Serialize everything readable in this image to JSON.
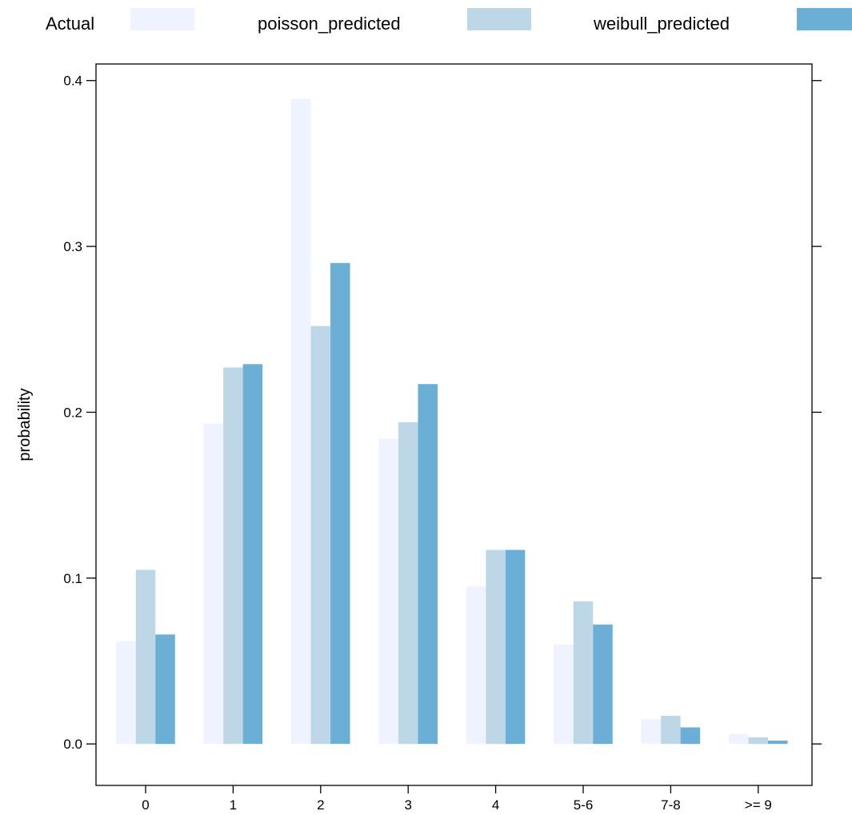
{
  "chart_data": {
    "type": "bar",
    "categories": [
      "0",
      "1",
      "2",
      "3",
      "4",
      "5-6",
      "7-8",
      ">= 9"
    ],
    "series": [
      {
        "name": "Actual",
        "color": "#EEF3FF",
        "values": [
          0.062,
          0.193,
          0.389,
          0.184,
          0.095,
          0.06,
          0.015,
          0.006
        ]
      },
      {
        "name": "poisson_predicted",
        "color": "#BDD7E7",
        "values": [
          0.105,
          0.227,
          0.252,
          0.194,
          0.117,
          0.086,
          0.017,
          0.004
        ]
      },
      {
        "name": "weibull_predicted",
        "color": "#6BAED6",
        "values": [
          0.066,
          0.229,
          0.29,
          0.217,
          0.117,
          0.072,
          0.01,
          0.002
        ]
      }
    ],
    "title": "",
    "xlabel": "",
    "ylabel": "probability",
    "ylim": [
      -0.025,
      0.41
    ],
    "yticks": [
      "0.0",
      "0.1",
      "0.2",
      "0.3",
      "0.4"
    ],
    "grid": false,
    "legend_position": "top"
  }
}
